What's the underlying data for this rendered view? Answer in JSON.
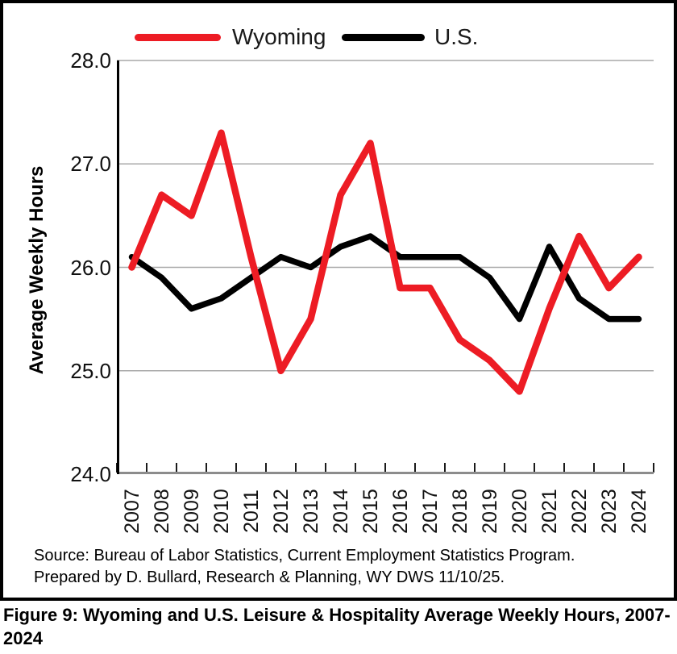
{
  "figure": {
    "legend": [
      {
        "label": "Wyoming",
        "color": "#ED1C24"
      },
      {
        "label": "U.S.",
        "color": "#000000"
      }
    ],
    "y_axis_title": "Average Weekly Hours",
    "source_line1": "Source: Bureau of Labor Statistics, Current Employment Statistics Program.",
    "source_line2": "Prepared by D. Bullard, Research & Planning, WY DWS 11/10/25.",
    "caption": "Figure 9: Wyoming and U.S. Leisure & Hospitality Average Weekly Hours, 2007-2024"
  },
  "chart_data": {
    "type": "line",
    "title": "Wyoming and U.S. Leisure & Hospitality Average Weekly Hours, 2007-2024",
    "categories": [
      "2007",
      "2008",
      "2009",
      "2010",
      "2011",
      "2012",
      "2013",
      "2014",
      "2015",
      "2016",
      "2017",
      "2018",
      "2019",
      "2020",
      "2021",
      "2022",
      "2023",
      "2024"
    ],
    "series": [
      {
        "name": "Wyoming",
        "color": "#ED1C24",
        "stroke_width": 8.5,
        "values": [
          26.0,
          26.7,
          26.5,
          27.3,
          26.1,
          25.0,
          25.5,
          26.7,
          27.2,
          25.8,
          25.8,
          25.3,
          25.1,
          24.8,
          25.6,
          26.3,
          25.8,
          26.1
        ]
      },
      {
        "name": "U.S.",
        "color": "#000000",
        "stroke_width": 7.5,
        "values": [
          26.1,
          25.9,
          25.6,
          25.7,
          25.9,
          26.1,
          26.0,
          26.2,
          26.3,
          26.1,
          26.1,
          26.1,
          25.9,
          25.5,
          26.2,
          25.7,
          25.5,
          25.5
        ]
      }
    ],
    "xlabel": "",
    "ylabel": "Average Weekly Hours",
    "ylim": [
      24.0,
      28.0
    ],
    "yticks": [
      24.0,
      25.0,
      26.0,
      27.0,
      28.0
    ],
    "ytick_labels": [
      "24.0",
      "25.0",
      "26.0",
      "27.0",
      "28.0"
    ],
    "grid": true,
    "legend_position": "top",
    "gridline_color": "#A8A8A8",
    "baseline_color": "#8C8C8C"
  }
}
